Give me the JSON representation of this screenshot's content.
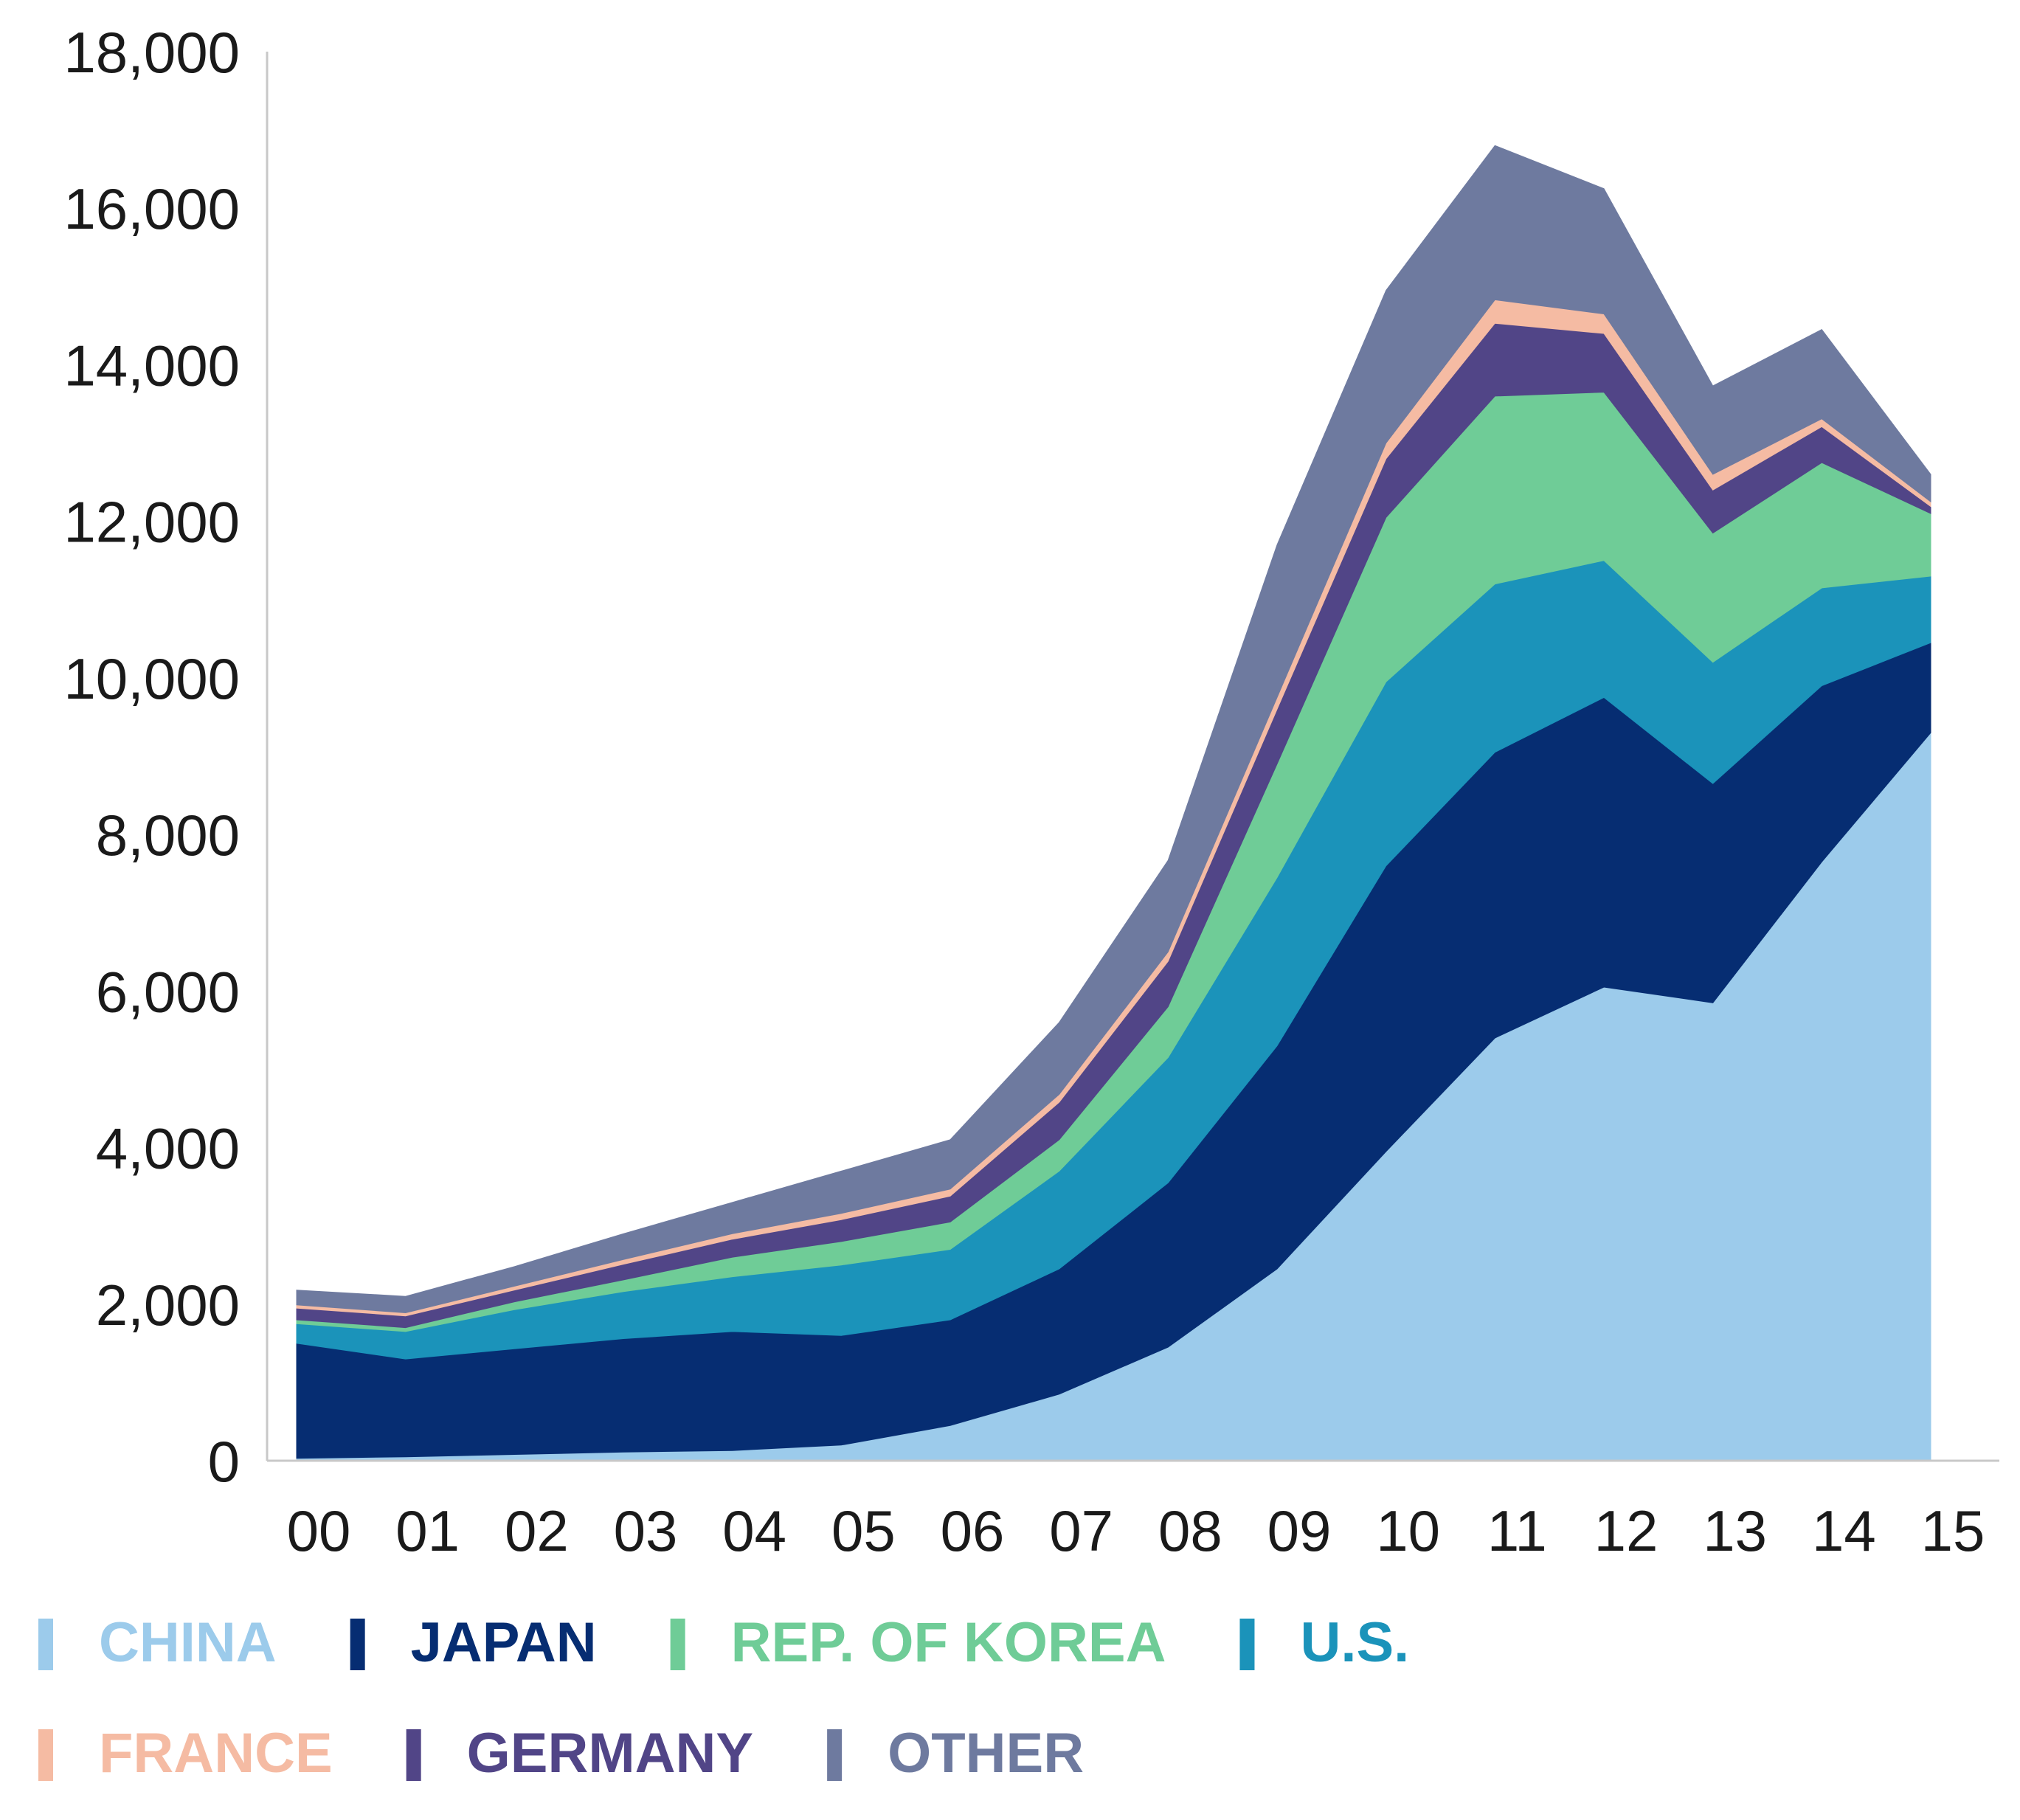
{
  "chart_data": {
    "type": "area",
    "stacked": true,
    "title": "",
    "xlabel": "",
    "ylabel": "",
    "categories": [
      "00",
      "01",
      "02",
      "03",
      "04",
      "05",
      "06",
      "07",
      "08",
      "09",
      "10",
      "11",
      "12",
      "13",
      "14",
      "15"
    ],
    "ylim": [
      0,
      18000
    ],
    "yticks": [
      0,
      2000,
      4000,
      6000,
      8000,
      10000,
      12000,
      14000,
      16000,
      18000
    ],
    "ytick_labels": [
      "0",
      "2,000",
      "4,000",
      "6,000",
      "8,000",
      "10,000",
      "12,000",
      "14,000",
      "16,000",
      "18,000"
    ],
    "grid": false,
    "legend_position": "bottom",
    "series": [
      {
        "name": "CHINA",
        "color": "#9ccbeb",
        "values": [
          30,
          50,
          80,
          110,
          130,
          200,
          450,
          850,
          1450,
          2450,
          3950,
          5400,
          6050,
          5850,
          7650,
          9300
        ]
      },
      {
        "name": "JAPAN",
        "color": "#062d72",
        "values": [
          1470,
          1250,
          1350,
          1450,
          1520,
          1400,
          1350,
          1600,
          2100,
          2850,
          3650,
          3650,
          3700,
          2800,
          2250,
          1150
        ]
      },
      {
        "name": "U.S.",
        "color": "#1b93ba",
        "values": [
          250,
          350,
          500,
          600,
          700,
          900,
          900,
          1250,
          1600,
          2150,
          2350,
          2150,
          1750,
          1550,
          1250,
          850
        ]
      },
      {
        "name": "REP. OF KOREA",
        "color": "#6fcc97",
        "values": [
          50,
          50,
          100,
          150,
          250,
          300,
          350,
          400,
          650,
          1450,
          2100,
          2400,
          2150,
          1650,
          1600,
          800
        ]
      },
      {
        "name": "GERMANY",
        "color": "#514587",
        "values": [
          150,
          150,
          150,
          200,
          230,
          280,
          330,
          480,
          580,
          700,
          750,
          930,
          750,
          550,
          460,
          90
        ]
      },
      {
        "name": "FRANCE",
        "color": "#f5bba3",
        "values": [
          40,
          40,
          50,
          60,
          70,
          80,
          90,
          100,
          120,
          150,
          200,
          300,
          250,
          200,
          100,
          60
        ]
      },
      {
        "name": "OTHER",
        "color": "#6e7a9f",
        "values": [
          190,
          210,
          250,
          330,
          400,
          540,
          630,
          920,
          1170,
          1950,
          1950,
          1970,
          1600,
          1130,
          1140,
          350
        ]
      }
    ],
    "legend_order": [
      "CHINA",
      "JAPAN",
      "REP. OF KOREA",
      "U.S.",
      "FRANCE",
      "GERMANY",
      "OTHER"
    ]
  }
}
